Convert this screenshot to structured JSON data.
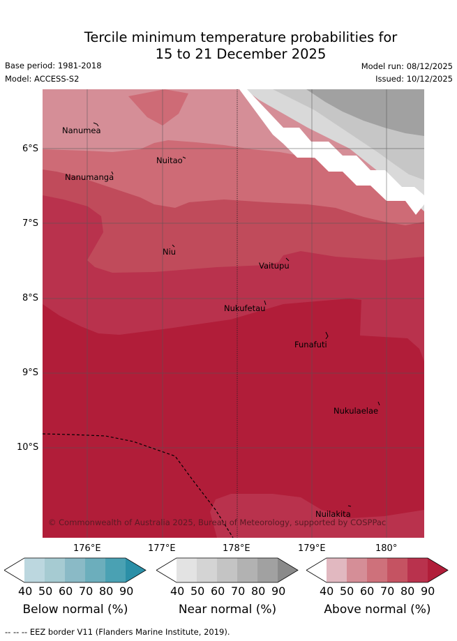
{
  "title": {
    "line1": "Tercile minimum temperature probabilities for",
    "line2": "15 to 21 December 2025"
  },
  "meta": {
    "base_period": "Base period: 1981-2018",
    "model": "Model: ACCESS-S2",
    "model_run": "Model run: 08/12/2025",
    "issued": "Issued: 10/12/2025"
  },
  "axes": {
    "lon_labels": [
      "176°E",
      "177°E",
      "178°E",
      "179°E",
      "180°"
    ],
    "lat_labels": [
      "6°S",
      "7°S",
      "8°S",
      "9°S",
      "10°S"
    ]
  },
  "places": [
    "Nanumea",
    "Nuitao",
    "Nanumanga",
    "Niu",
    "Vaitupu",
    "Nukufetau",
    "Funafuti",
    "Nukulaelae",
    "Nuilakita"
  ],
  "copyright": "© Commonwealth of Australia 2025, Bureau of Meteorology, supported by COSPPac",
  "colorbars": [
    {
      "title": "Below normal (%)",
      "ticks": [
        "40",
        "50",
        "60",
        "70",
        "80",
        "90"
      ],
      "colors": [
        "#ffffff",
        "#bcd7df",
        "#a6cbd2",
        "#8abac6",
        "#6caebc",
        "#4aa1b3",
        "#2b8fa7"
      ]
    },
    {
      "title": "Near normal (%)",
      "ticks": [
        "40",
        "50",
        "60",
        "70",
        "80",
        "90"
      ],
      "colors": [
        "#ffffff",
        "#e3e3e3",
        "#d4d4d4",
        "#c4c4c4",
        "#b2b2b2",
        "#a1a1a1",
        "#8a8a8a"
      ]
    },
    {
      "title": "Above normal (%)",
      "ticks": [
        "40",
        "50",
        "60",
        "70",
        "80",
        "90"
      ],
      "colors": [
        "#ffffff",
        "#e1b8c0",
        "#d58e97",
        "#ce717b",
        "#c55362",
        "#b9324d",
        "#b11d39"
      ]
    }
  ],
  "footer": "--  --  -- EEZ border V11 (Flanders Marine Institute, 2019)."
}
